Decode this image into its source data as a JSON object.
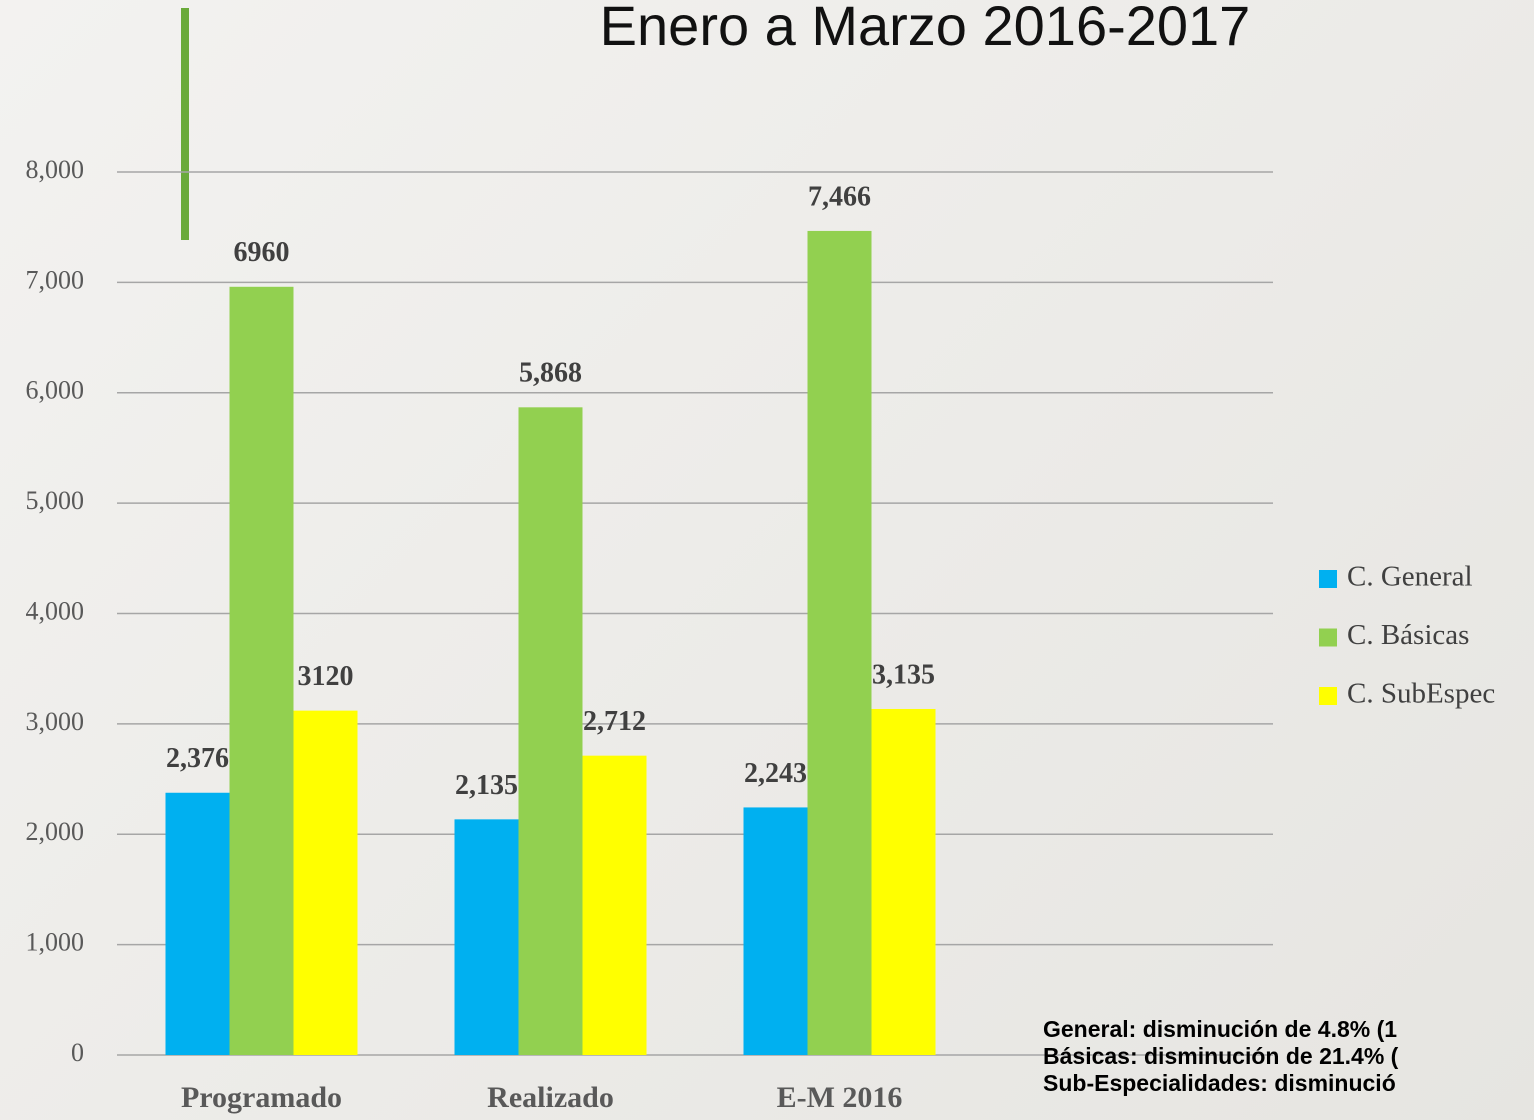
{
  "chart_data": {
    "type": "bar",
    "title": "Enero a Marzo 2016-2017",
    "categories": [
      "Programado",
      "Realizado",
      "E-M 2016"
    ],
    "series": [
      {
        "name": "C. General",
        "color": "#00b0f0",
        "values": [
          2376,
          2135,
          2243
        ],
        "value_labels": [
          "2,376",
          "2,135",
          "2,243"
        ]
      },
      {
        "name": "C. Básicas",
        "color": "#92d050",
        "values": [
          6960,
          5868,
          7466
        ],
        "value_labels": [
          "6960",
          "5,868",
          "7,466"
        ]
      },
      {
        "name": "C. SubEspec",
        "color": "#ffff00",
        "values": [
          3120,
          2712,
          3135
        ],
        "value_labels": [
          "3120",
          "2,712",
          "3,135"
        ]
      }
    ],
    "ylim": [
      0,
      8000
    ],
    "yticks": [
      0,
      {
        "value": 1000,
        "label": "1,000"
      },
      {
        "value": 2000,
        "label": "2,000"
      },
      {
        "value": 3000,
        "label": "3,000"
      },
      {
        "value": 4000,
        "label": "4,000"
      },
      {
        "value": 5000,
        "label": "5,000"
      },
      {
        "value": 6000,
        "label": "6,000"
      },
      {
        "value": 7000,
        "label": "7,000"
      },
      {
        "value": 8000,
        "label": "8,000"
      }
    ],
    "grid": true,
    "legend": "right",
    "annotations": [
      "General: disminución de 4.8% (1",
      "Básicas: disminución de 21.4% (",
      "Sub-Especialidades: disminució"
    ]
  }
}
